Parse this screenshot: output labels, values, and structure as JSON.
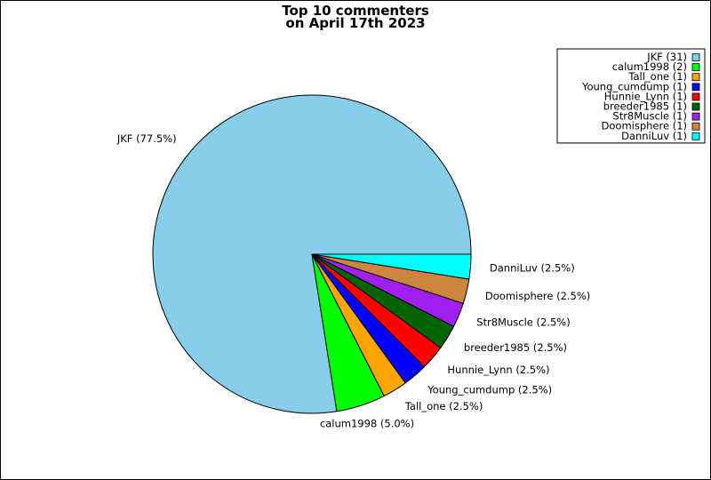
{
  "chart_data": {
    "type": "pie",
    "title": [
      "Top 10 commenters",
      "on April 17th 2023"
    ],
    "slices": [
      {
        "name": "JKF",
        "count": 31,
        "percent": 77.5,
        "color": "#87CEEB"
      },
      {
        "name": "calum1998",
        "count": 2,
        "percent": 5.0,
        "color": "#00FF00"
      },
      {
        "name": "Tall_one",
        "count": 1,
        "percent": 2.5,
        "color": "#FFA500"
      },
      {
        "name": "Young_cumdump",
        "count": 1,
        "percent": 2.5,
        "color": "#0000FF"
      },
      {
        "name": "Hunnie_Lynn",
        "count": 1,
        "percent": 2.5,
        "color": "#FF0000"
      },
      {
        "name": "breeder1985",
        "count": 1,
        "percent": 2.5,
        "color": "#006400"
      },
      {
        "name": "Str8Muscle",
        "count": 1,
        "percent": 2.5,
        "color": "#A020F0"
      },
      {
        "name": "Doomisphere",
        "count": 1,
        "percent": 2.5,
        "color": "#CD853F"
      },
      {
        "name": "DanniLuv",
        "count": 1,
        "percent": 2.5,
        "color": "#00FFFF"
      }
    ],
    "slice_labels": [
      "JKF (77.5%)",
      "calum1998 (5.0%)",
      "Tall_one (2.5%)",
      "Young_cumdump (2.5%)",
      "Hunnie_Lynn (2.5%)",
      "breeder1985 (2.5%)",
      "Str8Muscle (2.5%)",
      "Doomisphere (2.5%)",
      "DanniLuv (2.5%)"
    ],
    "legend_entries": [
      "JKF (31)",
      "calum1998 (2)",
      "Tall_one (1)",
      "Young_cumdump (1)",
      "Hunnie_Lynn (1)",
      "breeder1985 (1)",
      "Str8Muscle (1)",
      "Doomisphere (1)",
      "DanniLuv (1)"
    ],
    "legend_position": "top-right",
    "start_direction": "east (3 o'clock)",
    "direction": "counterclockwise"
  }
}
